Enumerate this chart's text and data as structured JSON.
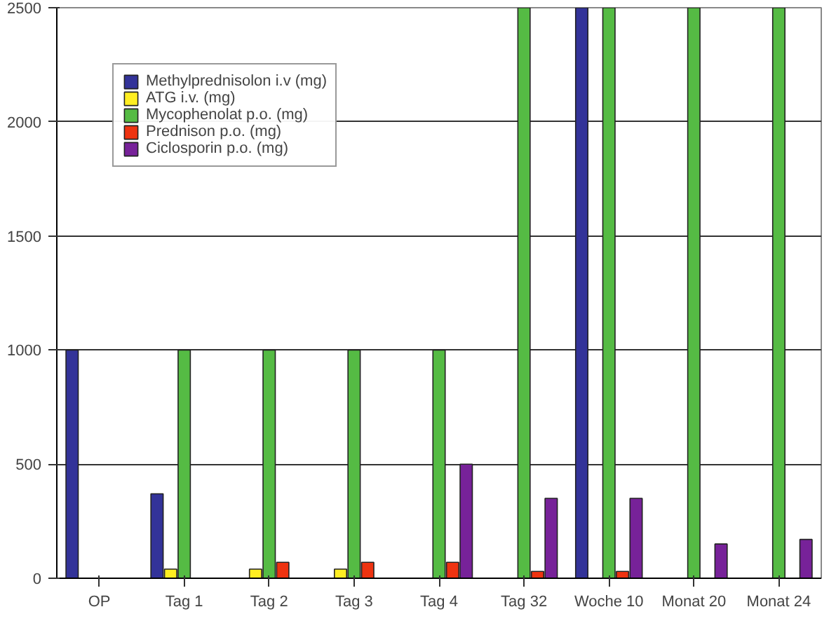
{
  "chart_data": {
    "type": "bar",
    "categories": [
      "OP",
      "Tag 1",
      "Tag 2",
      "Tag 3",
      "Tag 4",
      "Tag 32",
      "Woche 10",
      "Monat 20",
      "Monat 24"
    ],
    "series": [
      {
        "name": "Methylprednisolon i.v (mg)",
        "color": "#333399",
        "values": [
          1000,
          370,
          null,
          null,
          null,
          null,
          2500,
          null,
          null
        ]
      },
      {
        "name": "ATG i.v. (mg)",
        "color": "#ffee22",
        "values": [
          null,
          40,
          40,
          40,
          null,
          null,
          null,
          null,
          null
        ]
      },
      {
        "name": "Mycophenolat p.o. (mg)",
        "color": "#55bb44",
        "values": [
          null,
          1000,
          1000,
          1000,
          1000,
          2500,
          2500,
          2500,
          2500
        ]
      },
      {
        "name": "Prednison p.o. (mg)",
        "color": "#ee3311",
        "values": [
          null,
          null,
          70,
          70,
          70,
          30,
          30,
          null,
          null
        ]
      },
      {
        "name": "Ciclosporin p.o. (mg)",
        "color": "#772299",
        "values": [
          null,
          null,
          null,
          null,
          500,
          350,
          350,
          150,
          170
        ]
      }
    ],
    "ylim": [
      0,
      2500
    ],
    "yticks": [
      0,
      500,
      1000,
      1500,
      2000,
      2500
    ],
    "grid": "y",
    "legend": "top left"
  }
}
